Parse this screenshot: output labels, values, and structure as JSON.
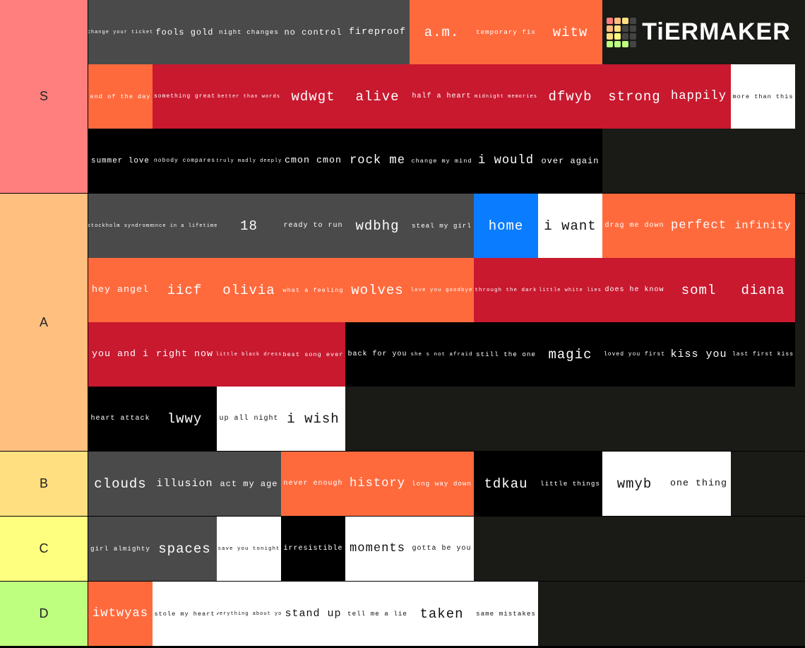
{
  "logo": "TiERMAKER",
  "tiers": [
    {
      "label": "S",
      "color": "#ff7f7f",
      "items": [
        {
          "text": "change your ticket",
          "color": "#4a4a4a"
        },
        {
          "text": "fools gold",
          "color": "#4a4a4a"
        },
        {
          "text": "night changes",
          "color": "#4a4a4a"
        },
        {
          "text": "no control",
          "color": "#4a4a4a"
        },
        {
          "text": "fireproof",
          "color": "#4a4a4a"
        },
        {
          "text": "a.m.",
          "color": "#ff6a3d"
        },
        {
          "text": "temporary fix",
          "color": "#ff6a3d"
        },
        {
          "text": "witw",
          "color": "#ff6a3d"
        },
        {
          "text": "end of the day",
          "color": "#ff6a3d"
        },
        {
          "text": "something great",
          "color": "#c8192f"
        },
        {
          "text": "better than words",
          "color": "#c8192f"
        },
        {
          "text": "wdwgt",
          "color": "#c8192f"
        },
        {
          "text": "alive",
          "color": "#c8192f"
        },
        {
          "text": "half a heart",
          "color": "#c8192f"
        },
        {
          "text": "midnight memories",
          "color": "#c8192f"
        },
        {
          "text": "dfwyb",
          "color": "#c8192f"
        },
        {
          "text": "strong",
          "color": "#c8192f"
        },
        {
          "text": "happily",
          "color": "#c8192f"
        },
        {
          "text": "more than this",
          "color": "#ffffff"
        },
        {
          "text": "summer love",
          "color": "#000000"
        },
        {
          "text": "nobody compares",
          "color": "#000000"
        },
        {
          "text": "truly madly deeply",
          "color": "#000000"
        },
        {
          "text": "cmon cmon",
          "color": "#000000"
        },
        {
          "text": "rock me",
          "color": "#000000"
        },
        {
          "text": "change my mind",
          "color": "#000000"
        },
        {
          "text": "i would",
          "color": "#000000"
        },
        {
          "text": "over again",
          "color": "#000000"
        }
      ]
    },
    {
      "label": "A",
      "color": "#ffbf7f",
      "items": [
        {
          "text": "stockholm syndrome",
          "color": "#4a4a4a"
        },
        {
          "text": "once in a lifetime",
          "color": "#4a4a4a"
        },
        {
          "text": "18",
          "color": "#4a4a4a"
        },
        {
          "text": "ready to run",
          "color": "#4a4a4a"
        },
        {
          "text": "wdbhg",
          "color": "#4a4a4a"
        },
        {
          "text": "steal my girl",
          "color": "#4a4a4a"
        },
        {
          "text": "home",
          "color": "#0a7cff"
        },
        {
          "text": "i want",
          "color": "#ffffff"
        },
        {
          "text": "drag me down",
          "color": "#ff6a3d"
        },
        {
          "text": "perfect",
          "color": "#ff6a3d"
        },
        {
          "text": "infinity",
          "color": "#ff6a3d"
        },
        {
          "text": "hey angel",
          "color": "#ff6a3d"
        },
        {
          "text": "iicf",
          "color": "#ff6a3d"
        },
        {
          "text": "olivia",
          "color": "#ff6a3d"
        },
        {
          "text": "what a feeling",
          "color": "#ff6a3d"
        },
        {
          "text": "wolves",
          "color": "#ff6a3d"
        },
        {
          "text": "love you goodbye",
          "color": "#ff6a3d"
        },
        {
          "text": "through the dark",
          "color": "#c8192f"
        },
        {
          "text": "little white lies",
          "color": "#c8192f"
        },
        {
          "text": "does he know",
          "color": "#c8192f"
        },
        {
          "text": "soml",
          "color": "#c8192f"
        },
        {
          "text": "diana",
          "color": "#c8192f"
        },
        {
          "text": "you and i",
          "color": "#c8192f"
        },
        {
          "text": "right now",
          "color": "#c8192f"
        },
        {
          "text": "little black dress",
          "color": "#c8192f"
        },
        {
          "text": "best song ever",
          "color": "#c8192f"
        },
        {
          "text": "back for you",
          "color": "#000000"
        },
        {
          "text": "she s not afraid",
          "color": "#000000"
        },
        {
          "text": "still the one",
          "color": "#000000"
        },
        {
          "text": "magic",
          "color": "#000000"
        },
        {
          "text": "loved you first",
          "color": "#000000"
        },
        {
          "text": "kiss you",
          "color": "#000000"
        },
        {
          "text": "last first kiss",
          "color": "#000000"
        },
        {
          "text": "heart attack",
          "color": "#000000"
        },
        {
          "text": "lwwy",
          "color": "#000000"
        },
        {
          "text": "up all night",
          "color": "#ffffff"
        },
        {
          "text": "i wish",
          "color": "#ffffff"
        }
      ]
    },
    {
      "label": "B",
      "color": "#ffdf7f",
      "items": [
        {
          "text": "clouds",
          "color": "#4a4a4a"
        },
        {
          "text": "illusion",
          "color": "#4a4a4a"
        },
        {
          "text": "act my age",
          "color": "#4a4a4a"
        },
        {
          "text": "never enough",
          "color": "#ff6a3d"
        },
        {
          "text": "history",
          "color": "#ff6a3d"
        },
        {
          "text": "long way down",
          "color": "#ff6a3d"
        },
        {
          "text": "tdkau",
          "color": "#000000"
        },
        {
          "text": "little things",
          "color": "#000000"
        },
        {
          "text": "wmyb",
          "color": "#ffffff"
        },
        {
          "text": "one thing",
          "color": "#ffffff"
        }
      ]
    },
    {
      "label": "C",
      "color": "#ffff7f",
      "items": [
        {
          "text": "girl almighty",
          "color": "#4a4a4a"
        },
        {
          "text": "spaces",
          "color": "#4a4a4a"
        },
        {
          "text": "save you tonight",
          "color": "#ffffff"
        },
        {
          "text": "irresistible",
          "color": "#000000"
        },
        {
          "text": "moments",
          "color": "#ffffff"
        },
        {
          "text": "gotta be you",
          "color": "#ffffff"
        }
      ]
    },
    {
      "label": "D",
      "color": "#bfff7f",
      "items": [
        {
          "text": "iwtwyas",
          "color": "#ff6a3d"
        },
        {
          "text": "stole my heart",
          "color": "#ffffff"
        },
        {
          "text": "everything about you",
          "color": "#ffffff"
        },
        {
          "text": "stand up",
          "color": "#ffffff"
        },
        {
          "text": "tell me a lie",
          "color": "#ffffff"
        },
        {
          "text": "taken",
          "color": "#ffffff"
        },
        {
          "text": "same mistakes",
          "color": "#ffffff"
        }
      ]
    }
  ]
}
